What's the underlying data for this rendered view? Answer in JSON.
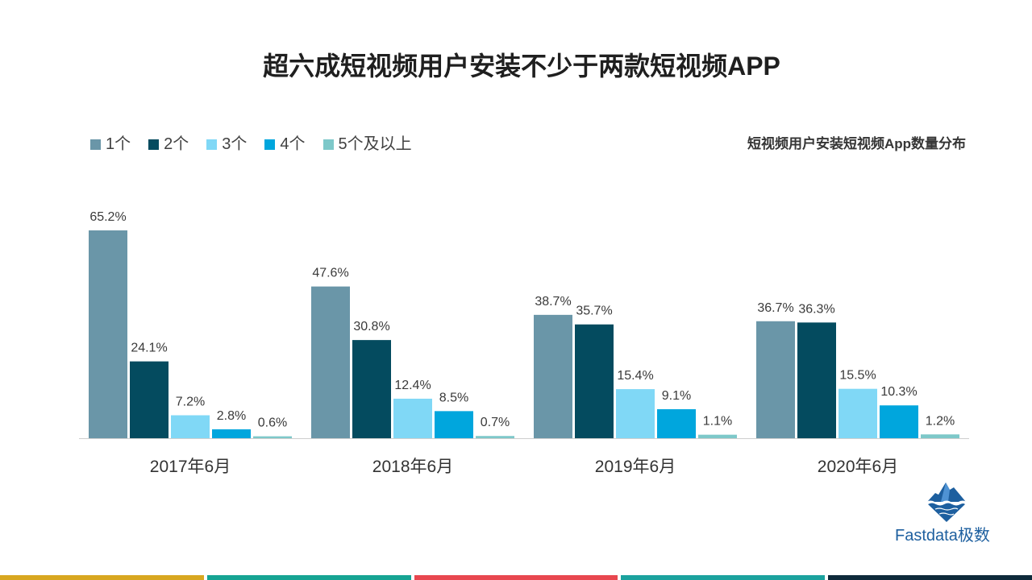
{
  "page": {
    "title": "超六成短视频用户安装不少于两款短视频APP"
  },
  "logo": {
    "text": "Fastdata极数",
    "icon": "iceberg-icon",
    "brand_color": "#1d5f9f"
  },
  "footer_strip_colors": [
    "#d8a720",
    "#16a493",
    "#e8474f",
    "#1ba29e",
    "#0e2a3a"
  ],
  "chart_data": {
    "type": "bar",
    "title": "短视频用户安装短视频App数量分布",
    "categories": [
      "2017年6月",
      "2018年6月",
      "2019年6月",
      "2020年6月"
    ],
    "series": [
      {
        "name": "1个",
        "color": "#6a96a8",
        "values": [
          65.2,
          47.6,
          38.7,
          36.7
        ]
      },
      {
        "name": "2个",
        "color": "#044b5f",
        "values": [
          24.1,
          30.8,
          35.7,
          36.3
        ]
      },
      {
        "name": "3个",
        "color": "#80d8f6",
        "values": [
          7.2,
          12.4,
          15.4,
          15.5
        ]
      },
      {
        "name": "4个",
        "color": "#00a6dd",
        "values": [
          2.8,
          8.5,
          9.1,
          10.3
        ]
      },
      {
        "name": "5个及以上",
        "color": "#7dc8c9",
        "values": [
          0.6,
          0.7,
          1.1,
          1.2
        ]
      }
    ],
    "value_suffix": "%",
    "ylim": [
      0,
      70
    ],
    "grid": false
  }
}
